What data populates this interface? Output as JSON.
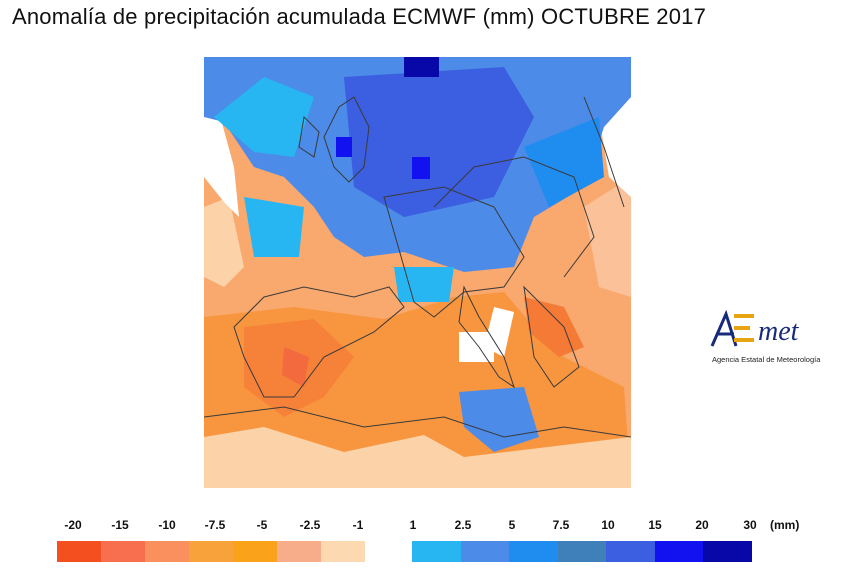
{
  "title": "Anomalía de precipitación acumulada ECMWF (mm) OCTUBRE 2017",
  "logo": {
    "wordmark": "AEmet",
    "subtitle": "Agencia Estatal de Meteorología"
  },
  "legend": {
    "negative": {
      "ticks": [
        "-20",
        "-15",
        "-10",
        "-7.5",
        "-5",
        "-2.5",
        "-1"
      ],
      "colors": [
        "#f44f1f",
        "#f86f50",
        "#f9905e",
        "#f8a23c",
        "#f9a21a",
        "#f8ad8a",
        "#fcd9b1"
      ]
    },
    "positive": {
      "ticks": [
        "1",
        "2.5",
        "5",
        "7.5",
        "10",
        "15",
        "20",
        "30"
      ],
      "colors": [
        "#27b6f2",
        "#4c8be8",
        "#1f8cf0",
        "#3f7fba",
        "#3c5ee0",
        "#1212f0",
        "#0808a8"
      ]
    },
    "unit": "(mm)"
  },
  "colors": {
    "land_outline": "#3a3a3a",
    "no_anomaly": "#ffffff"
  }
}
